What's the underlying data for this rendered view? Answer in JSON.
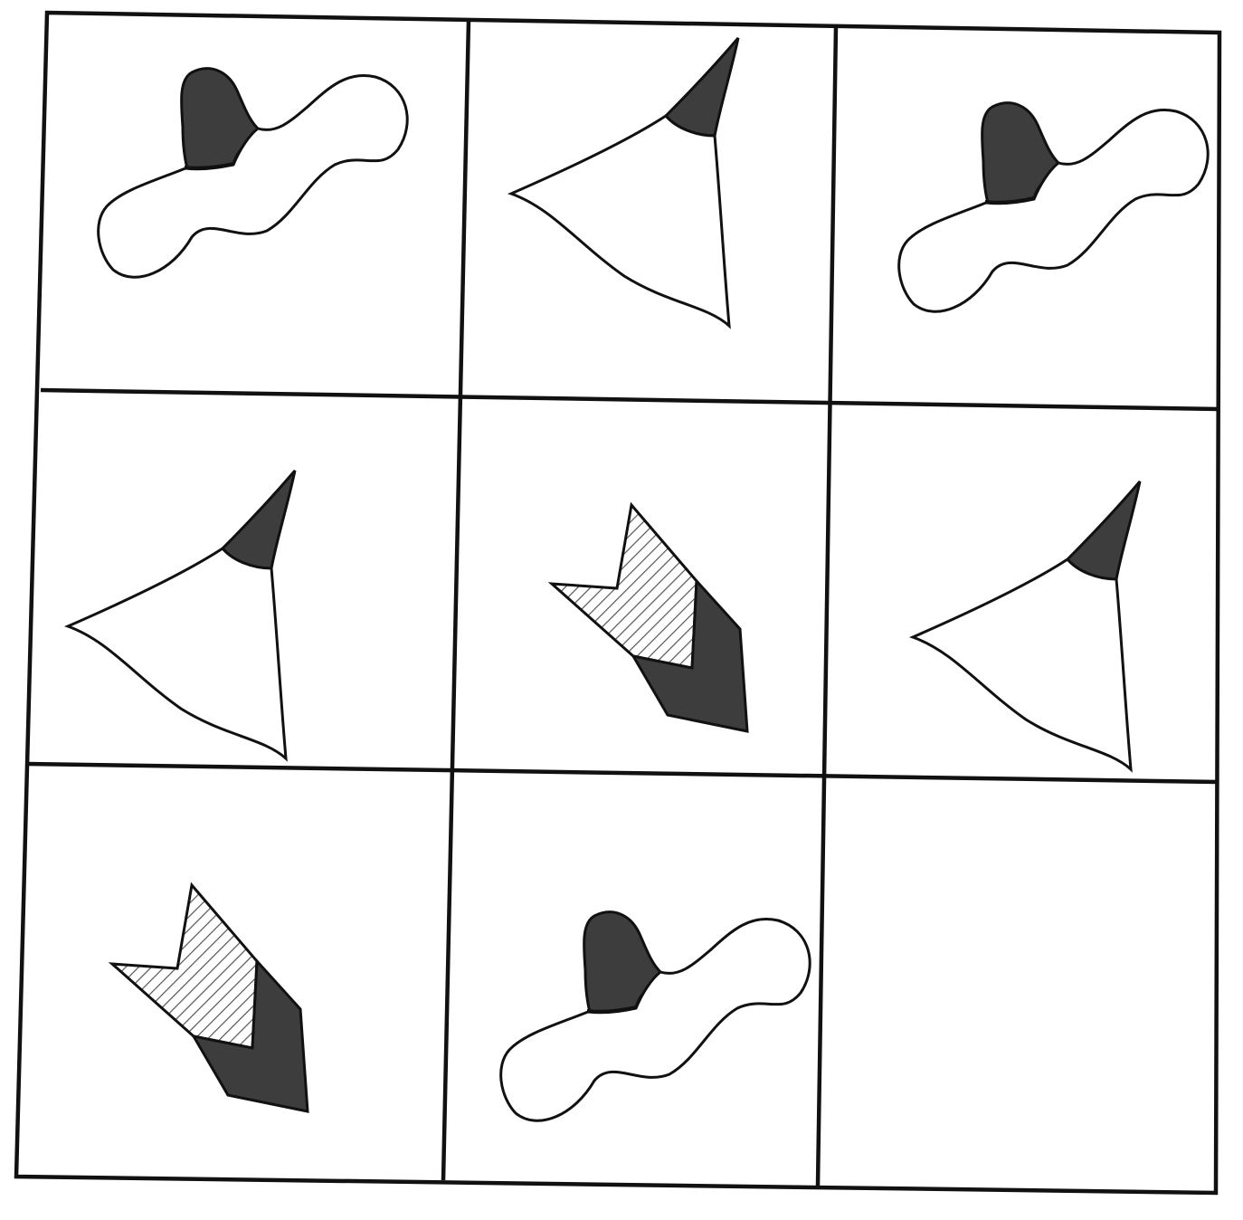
{
  "puzzle": {
    "rows": 3,
    "cols": 3,
    "cells": [
      {
        "row": 1,
        "col": 1,
        "figure": "wavy-blob"
      },
      {
        "row": 1,
        "col": 2,
        "figure": "kite"
      },
      {
        "row": 1,
        "col": 3,
        "figure": "wavy-blob"
      },
      {
        "row": 2,
        "col": 1,
        "figure": "kite"
      },
      {
        "row": 2,
        "col": 2,
        "figure": "chevron"
      },
      {
        "row": 2,
        "col": 3,
        "figure": "kite"
      },
      {
        "row": 3,
        "col": 1,
        "figure": "chevron"
      },
      {
        "row": 3,
        "col": 2,
        "figure": "wavy-blob"
      },
      {
        "row": 3,
        "col": 3,
        "figure": "empty"
      }
    ],
    "colors": {
      "line": "#111111",
      "dark_fill": "#3d3d3d",
      "hatch": "#555555",
      "background": "#ffffff"
    }
  }
}
